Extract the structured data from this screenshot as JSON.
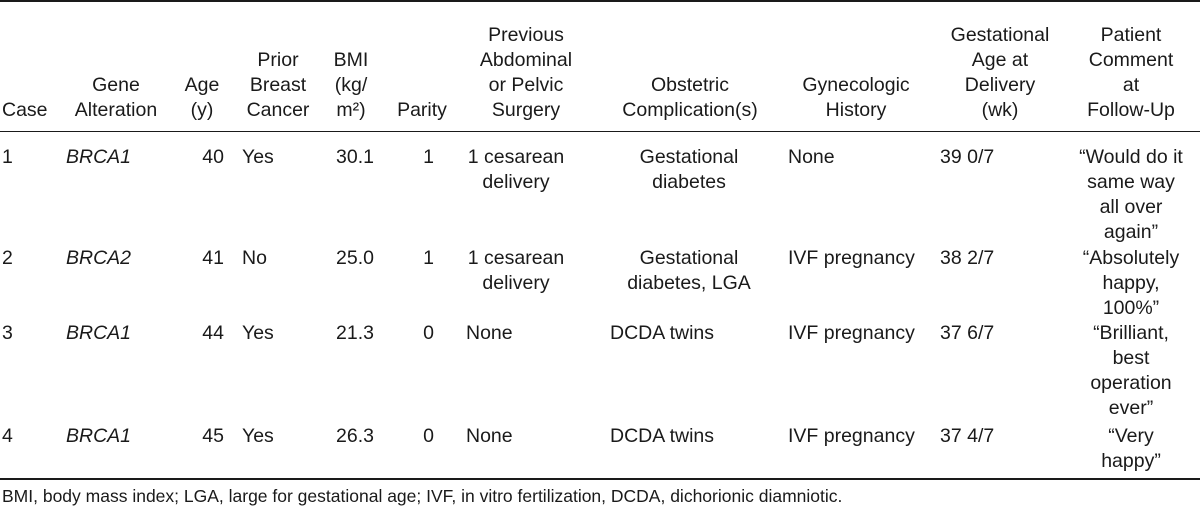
{
  "table": {
    "headers": [
      [
        "Case"
      ],
      [
        "Gene",
        "Alteration"
      ],
      [
        "Age",
        "(y)"
      ],
      [
        "Prior",
        "Breast",
        "Cancer"
      ],
      [
        "BMI",
        "(kg/",
        "m²)"
      ],
      [
        "Parity"
      ],
      [
        "Previous",
        "Abdominal",
        "or Pelvic",
        "Surgery"
      ],
      [
        "Obstetric",
        "Complication(s)"
      ],
      [
        "Gynecologic",
        "History"
      ],
      [
        "Gestational",
        "Age at",
        "Delivery",
        "(wk)"
      ],
      [
        "Patient",
        "Comment",
        "at",
        "Follow-Up"
      ]
    ],
    "rows": [
      {
        "case": "1",
        "gene": "BRCA1",
        "age": "40",
        "prior": "Yes",
        "bmi": "30.1",
        "parity": "1",
        "surgery": [
          "1 cesarean",
          "delivery"
        ],
        "complication": [
          "Gestational",
          "diabetes"
        ],
        "history": "None",
        "ga": "39 0/7",
        "comment": [
          "“Would do it",
          "same way",
          "all over",
          "again”"
        ]
      },
      {
        "case": "2",
        "gene": "BRCA2",
        "age": "41",
        "prior": "No",
        "bmi": "25.0",
        "parity": "1",
        "surgery": [
          "1 cesarean",
          "delivery"
        ],
        "complication": [
          "Gestational",
          "diabetes, LGA"
        ],
        "history": "IVF pregnancy",
        "ga": "38 2/7",
        "comment": [
          "“Absolutely",
          "happy,",
          "100%”"
        ]
      },
      {
        "case": "3",
        "gene": "BRCA1",
        "age": "44",
        "prior": "Yes",
        "bmi": "21.3",
        "parity": "0",
        "surgery": [
          "None"
        ],
        "complication": [
          "DCDA twins"
        ],
        "history": "IVF pregnancy",
        "ga": "37 6/7",
        "comment": [
          "“Brilliant,",
          "best",
          "operation",
          "ever”"
        ]
      },
      {
        "case": "4",
        "gene": "BRCA1",
        "age": "45",
        "prior": "Yes",
        "bmi": "26.3",
        "parity": "0",
        "surgery": [
          "None"
        ],
        "complication": [
          "DCDA twins"
        ],
        "history": "IVF pregnancy",
        "ga": "37 4/7",
        "comment": [
          "“Very",
          "happy”"
        ]
      }
    ],
    "footnote": "BMI, body mass index; LGA, large for gestational age; IVF, in vitro fertilization, DCDA, dichorionic diamniotic."
  }
}
